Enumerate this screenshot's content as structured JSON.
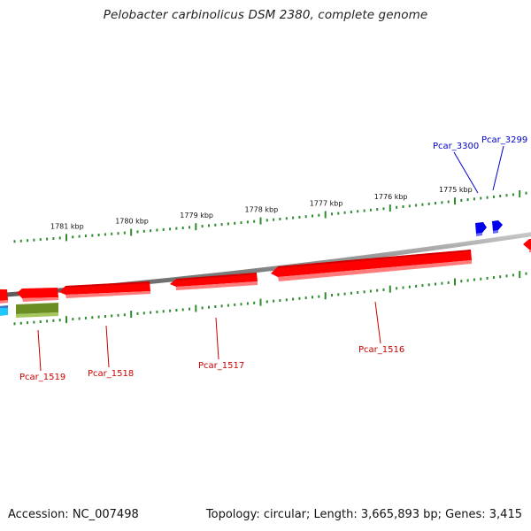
{
  "title": "Pelobacter carbinolicus DSM 2380, complete genome",
  "footer": {
    "accession": "Accession: NC_007498",
    "summary": "Topology: circular; Length: 3,665,893 bp; Genes: 3,415"
  },
  "colors": {
    "background": "#ffffff",
    "backbone": "#8a8a8a",
    "tick": "#2e8b2e",
    "gene_red": "#ff0000",
    "gene_blue": "#0000ee",
    "gene_olive": "#6b8e23",
    "gene_cyan": "#1ec8ff",
    "label_red": "#cc0000",
    "label_blue": "#0000cc"
  },
  "scale_labels": [
    {
      "kbp": 1781,
      "text": "1781 kbp"
    },
    {
      "kbp": 1780,
      "text": "1780 kbp"
    },
    {
      "kbp": 1779,
      "text": "1779 kbp"
    },
    {
      "kbp": 1778,
      "text": "1778 kbp"
    },
    {
      "kbp": 1777,
      "text": "1777 kbp"
    },
    {
      "kbp": 1776,
      "text": "1776 kbp"
    },
    {
      "kbp": 1775,
      "text": "1775 kbp"
    }
  ],
  "genes": [
    {
      "name": "Pcar_3300",
      "color": "blue"
    },
    {
      "name": "Pcar_3299",
      "color": "blue"
    },
    {
      "name": "Pcar_1516",
      "color": "red"
    },
    {
      "name": "Pcar_1517",
      "color": "red"
    },
    {
      "name": "Pcar_1518",
      "color": "red"
    },
    {
      "name": "Pcar_1519",
      "color": "red"
    }
  ]
}
